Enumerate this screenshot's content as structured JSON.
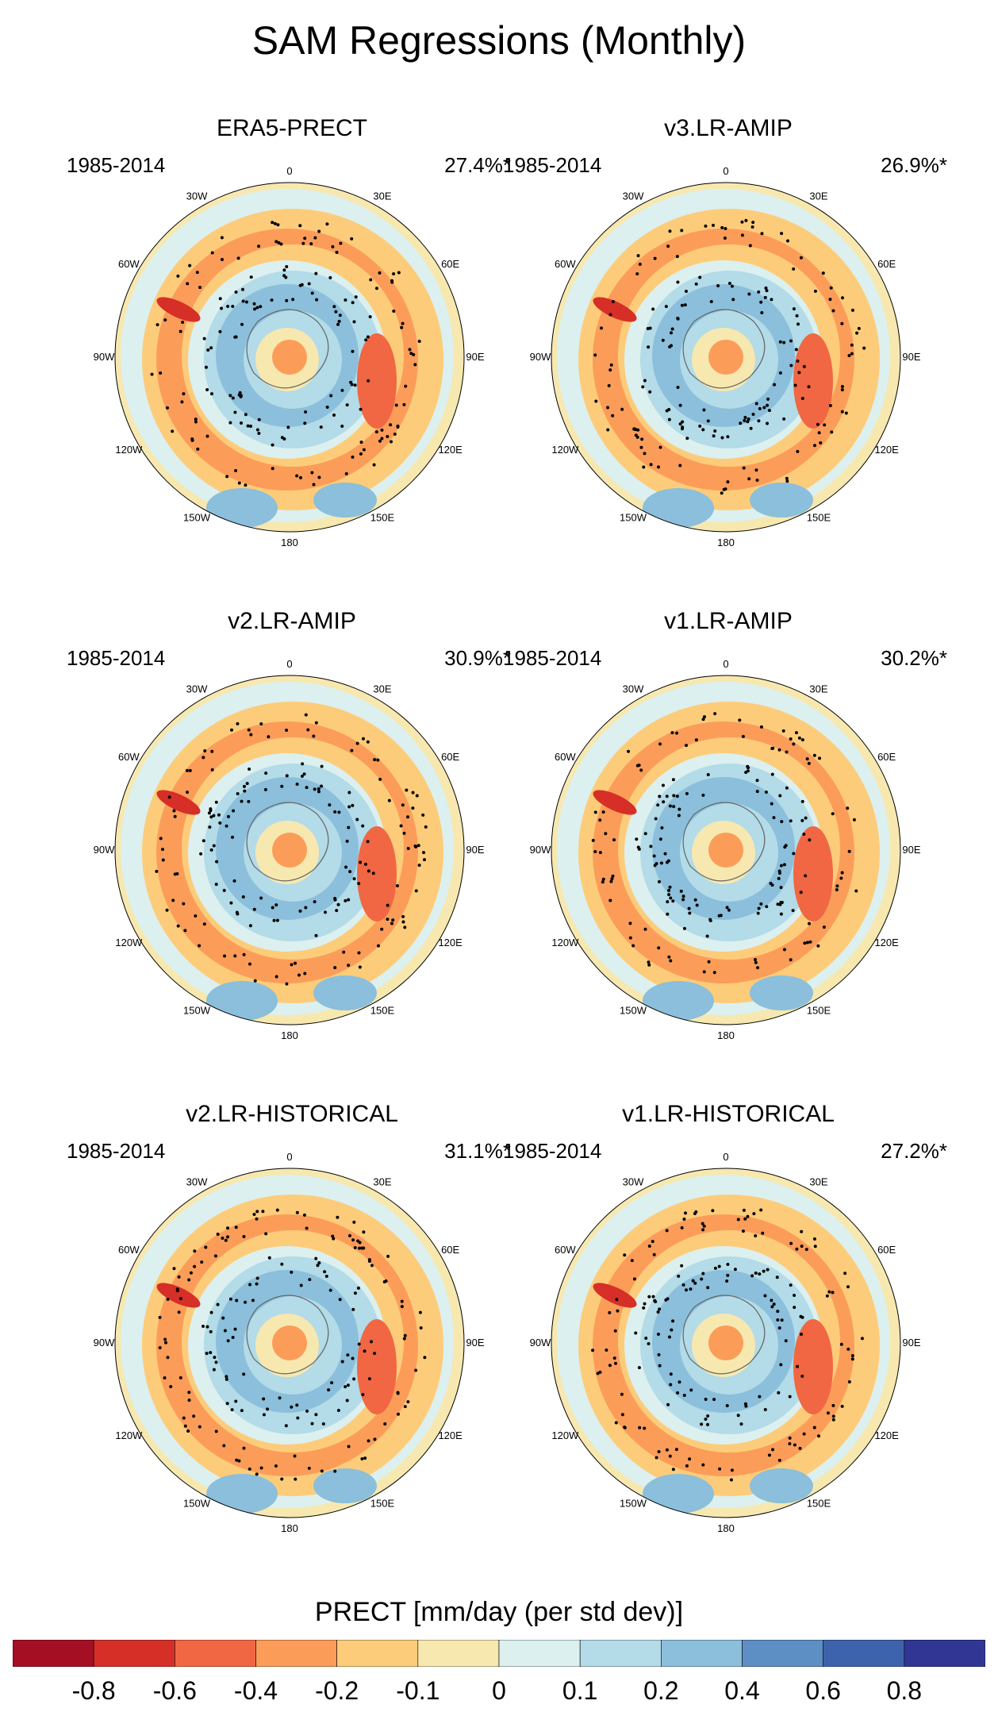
{
  "figure": {
    "title": "SAM Regressions (Monthly)",
    "colorbar_title": "PRECT [mm/day (per std dev)]",
    "colorbar_labels": [
      "-0.8",
      "-0.6",
      "-0.4",
      "-0.2",
      "-0.1",
      "0",
      "0.1",
      "0.2",
      "0.4",
      "0.6",
      "0.8"
    ],
    "colorbar_colors": [
      "#a50f24",
      "#d62f27",
      "#f16743",
      "#fb9d59",
      "#fdcc7a",
      "#f7e8b0",
      "#dcf0ef",
      "#b3dbe8",
      "#8bbfdb",
      "#5d8fc4",
      "#3e63ad",
      "#313695"
    ],
    "longitude_labels": [
      "0",
      "30E",
      "60E",
      "90E",
      "120E",
      "150E",
      "180",
      "150W",
      "120W",
      "90W",
      "60W",
      "30W"
    ]
  },
  "panels": [
    {
      "title": "ERA5-PRECT",
      "years": "1985-2014",
      "pct": "27.4%*"
    },
    {
      "title": "v3.LR-AMIP",
      "years": "1985-2014",
      "pct": "26.9%*"
    },
    {
      "title": "v2.LR-AMIP",
      "years": "1985-2014",
      "pct": "30.9%*"
    },
    {
      "title": "v1.LR-AMIP",
      "years": "1985-2014",
      "pct": "30.2%*"
    },
    {
      "title": "v2.LR-HISTORICAL",
      "years": "1985-2014",
      "pct": "31.1%*"
    },
    {
      "title": "v1.LR-HISTORICAL",
      "years": "1985-2014",
      "pct": "27.2%*"
    }
  ]
}
